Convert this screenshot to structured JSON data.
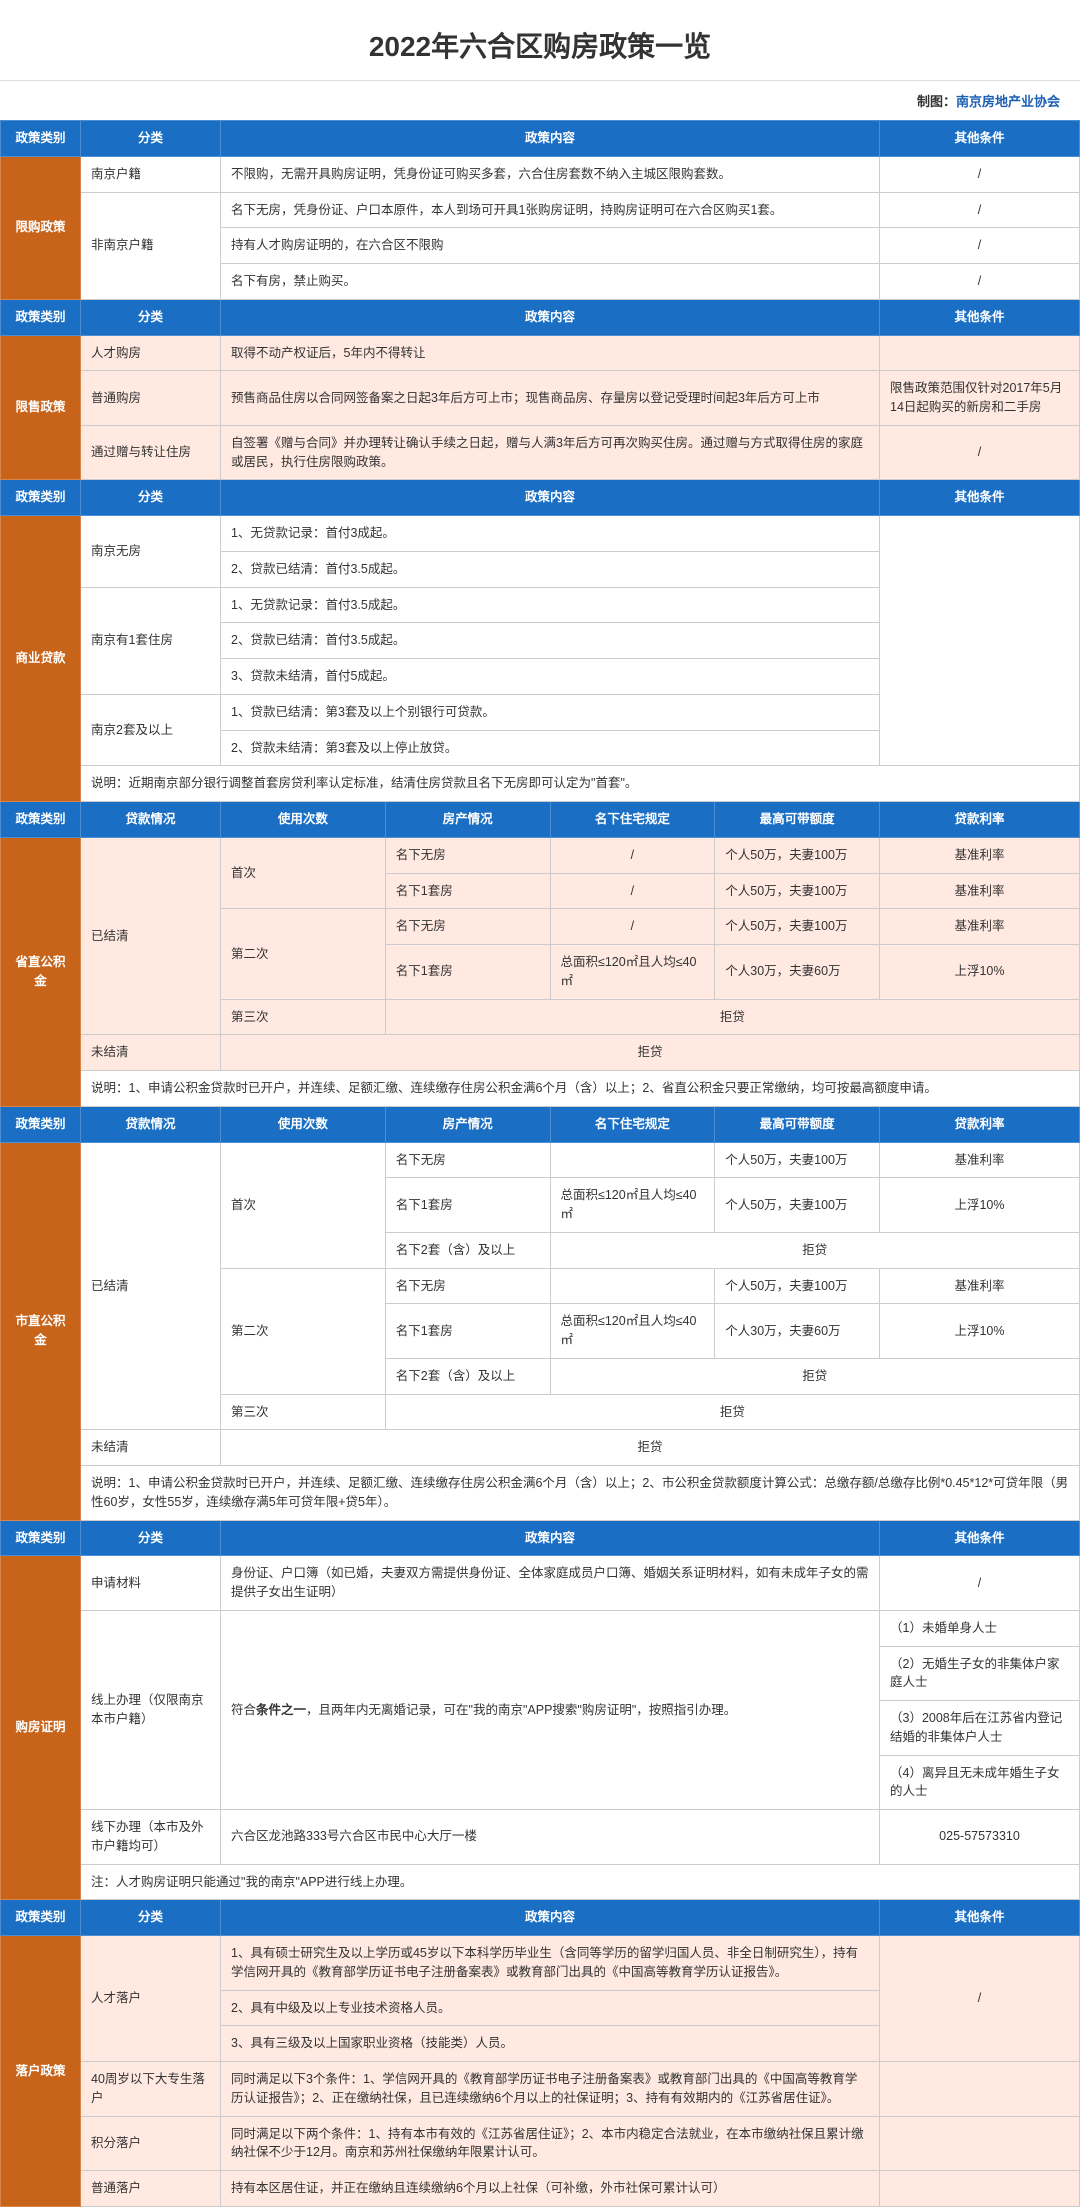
{
  "title": "2022年六合区购房政策一览",
  "attribution_prefix": "制图：",
  "attribution_org": "南京房地产业协会",
  "colors": {
    "header_bg": "#1a6fc4",
    "category_bg": "#c8641a",
    "pink_bg": "#ffe9e0",
    "border": "#cccccc"
  },
  "headers": {
    "policy_type": "政策类别",
    "category": "分类",
    "content": "政策内容",
    "other_cond": "其他条件",
    "loan_status": "贷款情况",
    "use_count": "使用次数",
    "property_status": "房产情况",
    "house_rule": "名下住宅规定",
    "max_loan": "最高可带额度",
    "loan_rate": "贷款利率"
  },
  "section1": {
    "name": "限购政策",
    "rows": [
      {
        "cat": "南京户籍",
        "content": "不限购，无需开具购房证明，凭身份证可购买多套，六合住房套数不纳入主城区限购套数。",
        "other": "/"
      },
      {
        "cat": "非南京户籍",
        "content": "名下无房，凭身份证、户口本原件，本人到场可开具1张购房证明，持购房证明可在六合区购买1套。",
        "other": "/"
      },
      {
        "content": "持有人才购房证明的，在六合区不限购",
        "other": "/"
      },
      {
        "content": "名下有房，禁止购买。",
        "other": "/"
      }
    ]
  },
  "section2": {
    "name": "限售政策",
    "rows": [
      {
        "cat": "人才购房",
        "content": "取得不动产权证后，5年内不得转让",
        "other": ""
      },
      {
        "cat": "普通购房",
        "content": "预售商品住房以合同网签备案之日起3年后方可上市；现售商品房、存量房以登记受理时间起3年后方可上市",
        "other": "限售政策范围仅针对2017年5月14日起购买的新房和二手房"
      },
      {
        "cat": "通过赠与转让住房",
        "content": "自签署《赠与合同》并办理转让确认手续之日起，赠与人满3年后方可再次购买住房。通过赠与方式取得住房的家庭或居民，执行住房限购政策。",
        "other": "/"
      }
    ]
  },
  "section3": {
    "name": "商业贷款",
    "groups": [
      {
        "cat": "南京无房",
        "items": [
          "1、无贷款记录：首付3成起。",
          "2、贷款已结清：首付3.5成起。"
        ]
      },
      {
        "cat": "南京有1套住房",
        "items": [
          "1、无贷款记录：首付3.5成起。",
          "2、贷款已结清：首付3.5成起。",
          "3、贷款未结清，首付5成起。"
        ]
      },
      {
        "cat": "南京2套及以上",
        "items": [
          "1、贷款已结清：第3套及以上个别银行可贷款。",
          "2、贷款未结清：第3套及以上停止放贷。"
        ]
      }
    ],
    "note": "说明：近期南京部分银行调整首套房贷利率认定标准，结清住房贷款且名下无房即可认定为\"首套\"。"
  },
  "section4": {
    "name": "省直公积金",
    "settled": "已结清",
    "unsettled": "未结清",
    "first": "首次",
    "second": "第二次",
    "third": "第三次",
    "rows_first": [
      {
        "prop": "名下无房",
        "rule": "/",
        "max": "个人50万，夫妻100万",
        "rate": "基准利率"
      },
      {
        "prop": "名下1套房",
        "rule": "/",
        "max": "个人50万，夫妻100万",
        "rate": "基准利率"
      }
    ],
    "rows_second": [
      {
        "prop": "名下无房",
        "rule": "/",
        "max": "个人50万，夫妻100万",
        "rate": "基准利率"
      },
      {
        "prop": "名下1套房",
        "rule": "总面积≤120㎡且人均≤40㎡",
        "max": "个人30万，夫妻60万",
        "rate": "上浮10%"
      }
    ],
    "reject": "拒贷",
    "note": "说明：1、申请公积金贷款时已开户，并连续、足额汇缴、连续缴存住房公积金满6个月（含）以上；2、省直公积金只要正常缴纳，均可按最高额度申请。"
  },
  "section5": {
    "name": "市直公积金",
    "rows_first": [
      {
        "prop": "名下无房",
        "rule": "",
        "max": "个人50万，夫妻100万",
        "rate": "基准利率"
      },
      {
        "prop": "名下1套房",
        "rule": "总面积≤120㎡且人均≤40㎡",
        "max": "个人50万，夫妻100万",
        "rate": "上浮10%"
      },
      {
        "prop": "名下2套（含）及以上",
        "reject": true
      }
    ],
    "rows_second": [
      {
        "prop": "名下无房",
        "rule": "",
        "max": "个人50万，夫妻100万",
        "rate": "基准利率"
      },
      {
        "prop": "名下1套房",
        "rule": "总面积≤120㎡且人均≤40㎡",
        "max": "个人30万，夫妻60万",
        "rate": "上浮10%"
      },
      {
        "prop": "名下2套（含）及以上",
        "reject": true
      }
    ],
    "note": "说明：1、申请公积金贷款时已开户，并连续、足额汇缴、连续缴存住房公积金满6个月（含）以上；2、市公积金贷款额度计算公式：总缴存额/总缴存比例*0.45*12*可贷年限（男性60岁，女性55岁，连续缴存满5年可贷年限+贷5年）。"
  },
  "section6": {
    "name": "购房证明",
    "rows": [
      {
        "cat": "申请材料",
        "content": "身份证、户口簿（如已婚，夫妻双方需提供身份证、全体家庭成员户口簿、婚姻关系证明材料，如有未成年子女的需提供子女出生证明）",
        "other": "/"
      }
    ],
    "online_cat": "线上办理（仅限南京本市户籍）",
    "online_content": "符合条件之一，且两年内无离婚记录，可在\"我的南京\"APP搜索\"购房证明\"，按照指引办理。",
    "online_bold": "条件之一",
    "online_conditions": [
      "（1）未婚单身人士",
      "（2）无婚生子女的非集体户家庭人士",
      "（3）2008年后在江苏省内登记结婚的非集体户人士",
      "（4）离异且无未成年婚生子女的人士"
    ],
    "offline_cat": "线下办理（本市及外市户籍均可）",
    "offline_content": "六合区龙池路333号六合区市民中心大厅一楼",
    "offline_phone": "025-57573310",
    "note": "注：人才购房证明只能通过\"我的南京\"APP进行线上办理。"
  },
  "section7": {
    "name": "落户政策",
    "talent_cat": "人才落户",
    "talent_items": [
      "1、具有硕士研究生及以上学历或45岁以下本科学历毕业生（含同等学历的留学归国人员、非全日制研究生），持有学信网开具的《教育部学历证书电子注册备案表》或教育部门出具的《中国高等教育学历认证报告》。",
      "2、具有中级及以上专业技术资格人员。",
      "3、具有三级及以上国家职业资格（技能类）人员。"
    ],
    "talent_other": "/",
    "edu40_cat": "40周岁以下大专生落户",
    "edu40_content": "同时满足以下3个条件：1、学信网开具的《教育部学历证书电子注册备案表》或教育部门出具的《中国高等教育学历认证报告》；2、正在缴纳社保，且已连续缴纳6个月以上的社保证明；3、持有有效期内的《江苏省居住证》。",
    "points_cat": "积分落户",
    "points_content": "同时满足以下两个条件：1、持有本市有效的《江苏省居住证》；2、本市内稳定合法就业，在本市缴纳社保且累计缴纳社保不少于12月。南京和苏州社保缴纳年限累计认可。",
    "normal_cat": "普通落户",
    "normal_content": "持有本区居住证，并正在缴纳且连续缴纳6个月以上社保（可补缴，外市社保可累计认可）"
  }
}
